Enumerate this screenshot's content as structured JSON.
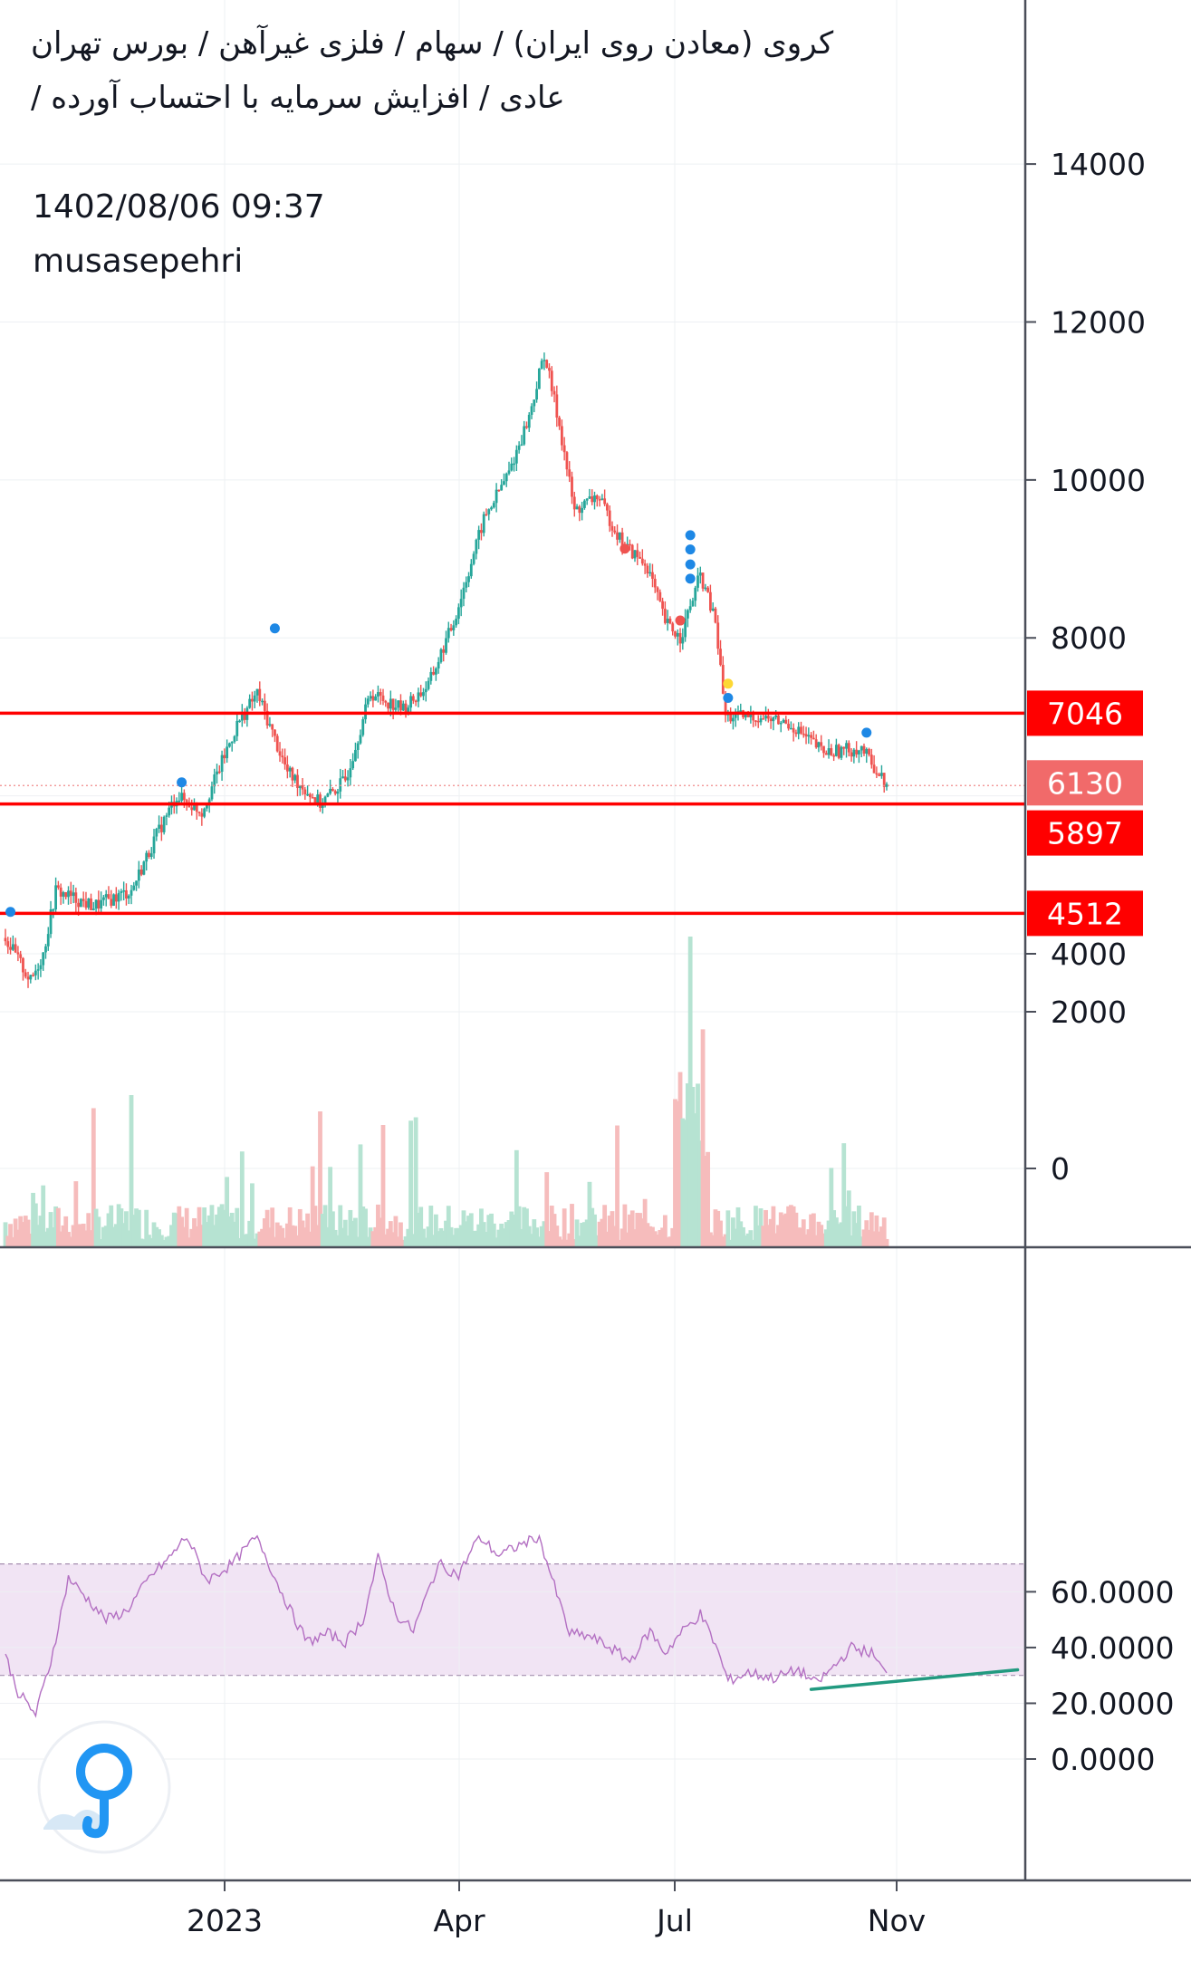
{
  "header": {
    "line1": "کروی (معادن روی ایران) / سهام / فلزی غیرآهن / بورس تهران",
    "line2": "عادی / افزایش سرمایه با احتساب آورده /",
    "timestamp": "1402/08/06 09:37",
    "author": "musasepehri"
  },
  "colors": {
    "up": "#26a69a",
    "down": "#ef5350",
    "level_line": "#ff0000",
    "rsi_line": "#b36fc2",
    "rsi_band": "#f1e4f4",
    "trendline": "#229a80",
    "last_price_label": "#f16a6a",
    "marker_blue": "#1e88e5",
    "marker_yellow": "#fdd835",
    "logo": "#2196f3"
  },
  "icons": {
    "logo": "tradingview-logo-icon"
  },
  "chart_data": [
    {
      "type": "candlestick",
      "ylim": [
        3000,
        14500
      ],
      "yticks": [
        "14000",
        "12000",
        "10000",
        "8000",
        "4000"
      ],
      "xticks": [
        "2023",
        "Apr",
        "Jul",
        "Nov"
      ],
      "grid": true,
      "price_path": [
        {
          "t": 0,
          "v": 4200
        },
        {
          "t": 10,
          "v": 3650
        },
        {
          "t": 15,
          "v": 4000
        },
        {
          "t": 20,
          "v": 4800
        },
        {
          "t": 35,
          "v": 4600
        },
        {
          "t": 50,
          "v": 4800
        },
        {
          "t": 60,
          "v": 5500
        },
        {
          "t": 68,
          "v": 6000
        },
        {
          "t": 78,
          "v": 5800
        },
        {
          "t": 92,
          "v": 6900
        },
        {
          "t": 100,
          "v": 7300
        },
        {
          "t": 112,
          "v": 6300
        },
        {
          "t": 125,
          "v": 5900
        },
        {
          "t": 135,
          "v": 6200
        },
        {
          "t": 145,
          "v": 7300
        },
        {
          "t": 158,
          "v": 7100
        },
        {
          "t": 168,
          "v": 7400
        },
        {
          "t": 178,
          "v": 8200
        },
        {
          "t": 190,
          "v": 9500
        },
        {
          "t": 200,
          "v": 10100
        },
        {
          "t": 208,
          "v": 10800
        },
        {
          "t": 214,
          "v": 11600
        },
        {
          "t": 220,
          "v": 10700
        },
        {
          "t": 226,
          "v": 9600
        },
        {
          "t": 235,
          "v": 9800
        },
        {
          "t": 245,
          "v": 9200
        },
        {
          "t": 255,
          "v": 8900
        },
        {
          "t": 262,
          "v": 8200
        },
        {
          "t": 268,
          "v": 8000
        },
        {
          "t": 276,
          "v": 8800
        },
        {
          "t": 282,
          "v": 8200
        },
        {
          "t": 286,
          "v": 7000
        },
        {
          "t": 300,
          "v": 7000
        },
        {
          "t": 312,
          "v": 6900
        },
        {
          "t": 325,
          "v": 6550
        },
        {
          "t": 340,
          "v": 6600
        },
        {
          "t": 350,
          "v": 6130
        }
      ],
      "levels": [
        {
          "value": 7046,
          "label": "7046"
        },
        {
          "value": 5897,
          "label": "5897"
        },
        {
          "value": 4512,
          "label": "4512"
        }
      ],
      "last_price": {
        "value": 6130,
        "label": "6130"
      },
      "markers": [
        {
          "t": 2,
          "v": 4530,
          "color": "blue"
        },
        {
          "t": 70,
          "v": 6170,
          "color": "blue"
        },
        {
          "t": 107,
          "v": 8120,
          "color": "blue"
        },
        {
          "t": 246,
          "v": 9130,
          "color": "red"
        },
        {
          "t": 268,
          "v": 8220,
          "color": "red"
        },
        {
          "t": 272,
          "v": 9300,
          "color": "blue"
        },
        {
          "t": 272,
          "v": 9120,
          "color": "blue"
        },
        {
          "t": 272,
          "v": 8930,
          "color": "blue"
        },
        {
          "t": 272,
          "v": 8750,
          "color": "blue"
        },
        {
          "t": 287,
          "v": 7420,
          "color": "yellow"
        },
        {
          "t": 287,
          "v": 7240,
          "color": "blue"
        },
        {
          "t": 342,
          "v": 6800,
          "color": "blue"
        }
      ]
    },
    {
      "type": "area",
      "name": "",
      "ylim": [
        -20,
        80
      ],
      "yticks": [
        "60.0000",
        "40.0000",
        "20.0000",
        "0.0000"
      ],
      "band": [
        30,
        70
      ],
      "rsi_path": [
        {
          "t": 0,
          "v": 37
        },
        {
          "t": 5,
          "v": 24
        },
        {
          "t": 12,
          "v": 16
        },
        {
          "t": 18,
          "v": 35
        },
        {
          "t": 25,
          "v": 65
        },
        {
          "t": 32,
          "v": 58
        },
        {
          "t": 40,
          "v": 50
        },
        {
          "t": 48,
          "v": 53
        },
        {
          "t": 58,
          "v": 66
        },
        {
          "t": 65,
          "v": 72
        },
        {
          "t": 72,
          "v": 80
        },
        {
          "t": 80,
          "v": 64
        },
        {
          "t": 90,
          "v": 70
        },
        {
          "t": 100,
          "v": 80
        },
        {
          "t": 108,
          "v": 63
        },
        {
          "t": 115,
          "v": 50
        },
        {
          "t": 120,
          "v": 42
        },
        {
          "t": 128,
          "v": 45
        },
        {
          "t": 135,
          "v": 42
        },
        {
          "t": 142,
          "v": 50
        },
        {
          "t": 148,
          "v": 72
        },
        {
          "t": 155,
          "v": 52
        },
        {
          "t": 162,
          "v": 46
        },
        {
          "t": 172,
          "v": 70
        },
        {
          "t": 180,
          "v": 66
        },
        {
          "t": 188,
          "v": 80
        },
        {
          "t": 196,
          "v": 73
        },
        {
          "t": 205,
          "v": 77
        },
        {
          "t": 212,
          "v": 80
        },
        {
          "t": 218,
          "v": 62
        },
        {
          "t": 224,
          "v": 45
        },
        {
          "t": 232,
          "v": 44
        },
        {
          "t": 242,
          "v": 39
        },
        {
          "t": 248,
          "v": 35
        },
        {
          "t": 256,
          "v": 46
        },
        {
          "t": 262,
          "v": 38
        },
        {
          "t": 268,
          "v": 45
        },
        {
          "t": 276,
          "v": 52
        },
        {
          "t": 282,
          "v": 41
        },
        {
          "t": 287,
          "v": 28
        },
        {
          "t": 295,
          "v": 31
        },
        {
          "t": 305,
          "v": 29
        },
        {
          "t": 315,
          "v": 32
        },
        {
          "t": 322,
          "v": 27
        },
        {
          "t": 330,
          "v": 34
        },
        {
          "t": 336,
          "v": 40
        },
        {
          "t": 344,
          "v": 38
        },
        {
          "t": 350,
          "v": 30
        }
      ],
      "trendline": [
        {
          "t": 320,
          "v": 25
        },
        {
          "t": 402,
          "v": 32
        }
      ]
    }
  ]
}
